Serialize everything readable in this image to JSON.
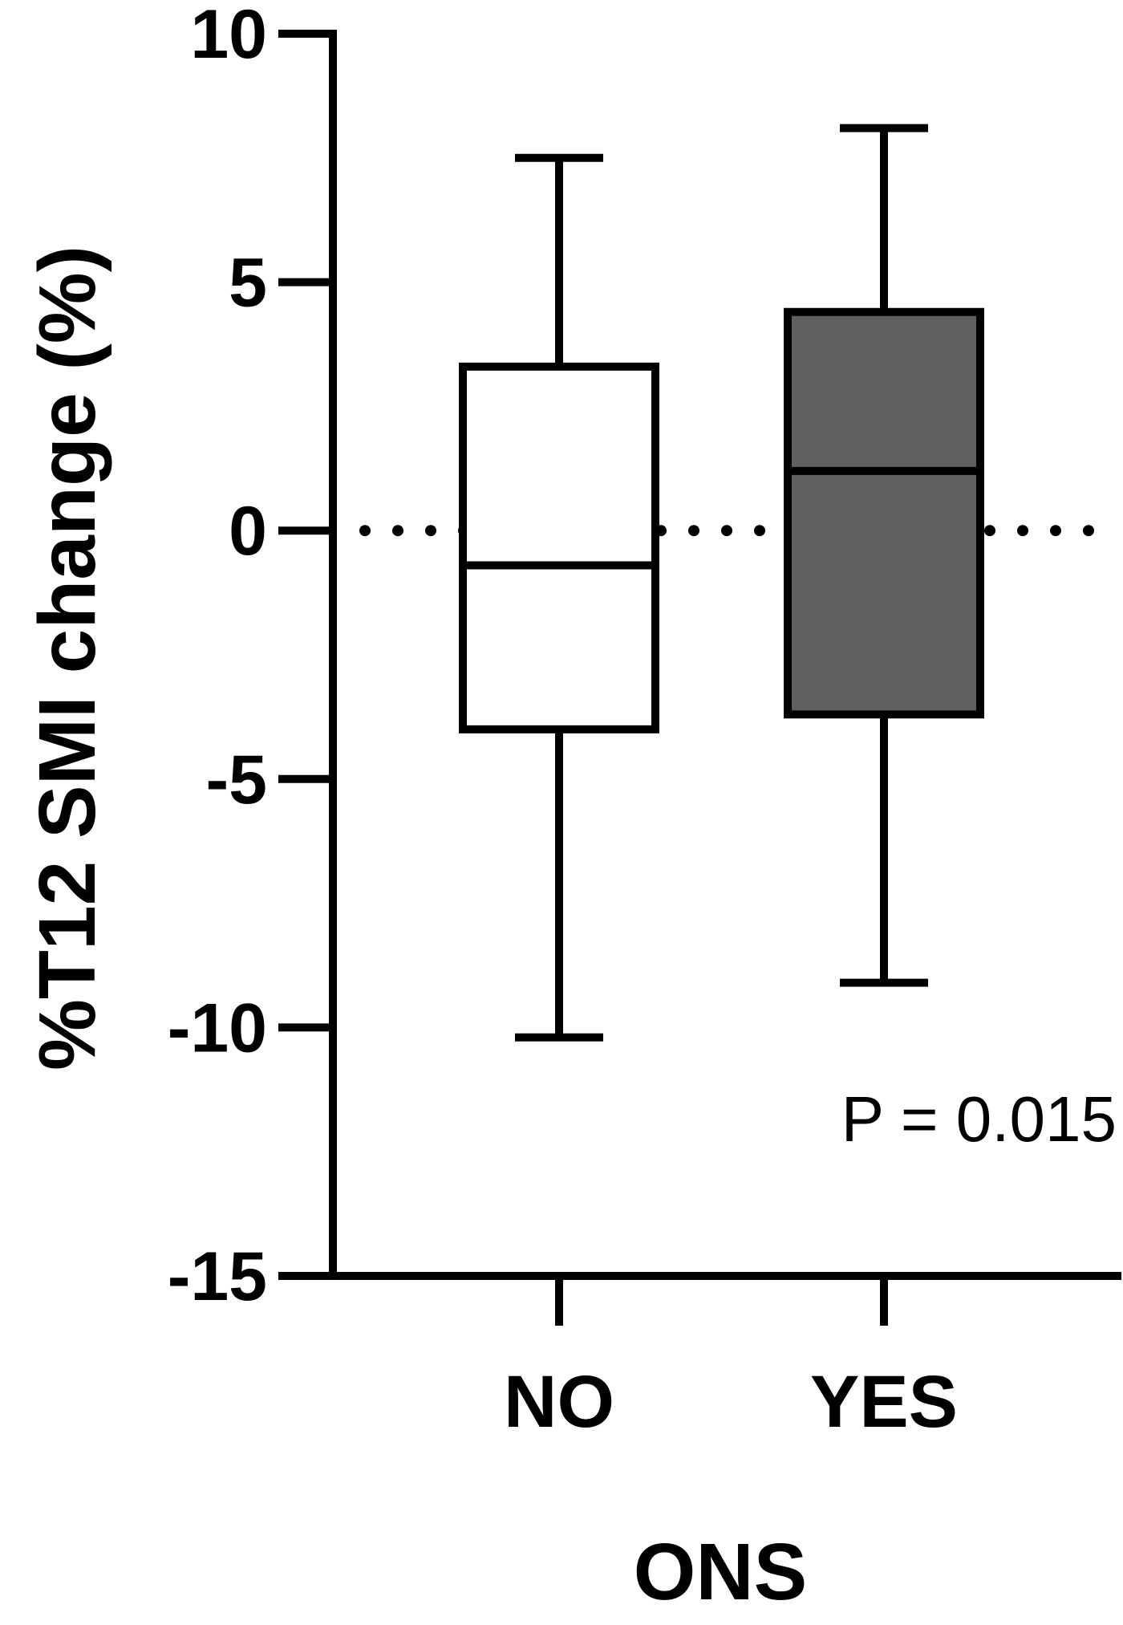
{
  "chart_data": {
    "type": "box",
    "xlabel": "ONS",
    "ylabel": "%T12 SMI change (%)",
    "ylim": [
      -15,
      10
    ],
    "yticks": [
      10,
      5,
      0,
      -5,
      -10,
      -15
    ],
    "ytick_labels": [
      "10",
      "5",
      "0",
      "-5",
      "-10",
      "-15"
    ],
    "categories": [
      "NO",
      "YES"
    ],
    "boxes": [
      {
        "category": "NO",
        "whisker_low": -10.2,
        "q1": -4.0,
        "median": -0.7,
        "q3": 3.3,
        "whisker_high": 7.5,
        "fill": "#ffffff"
      },
      {
        "category": "YES",
        "whisker_low": -9.1,
        "q1": -3.7,
        "median": 1.2,
        "q3": 4.4,
        "whisker_high": 8.1,
        "fill": "#606060"
      }
    ],
    "reference_line": {
      "y": 0,
      "style": "dotted"
    },
    "annotation": "P = 0.015",
    "grid": false
  }
}
